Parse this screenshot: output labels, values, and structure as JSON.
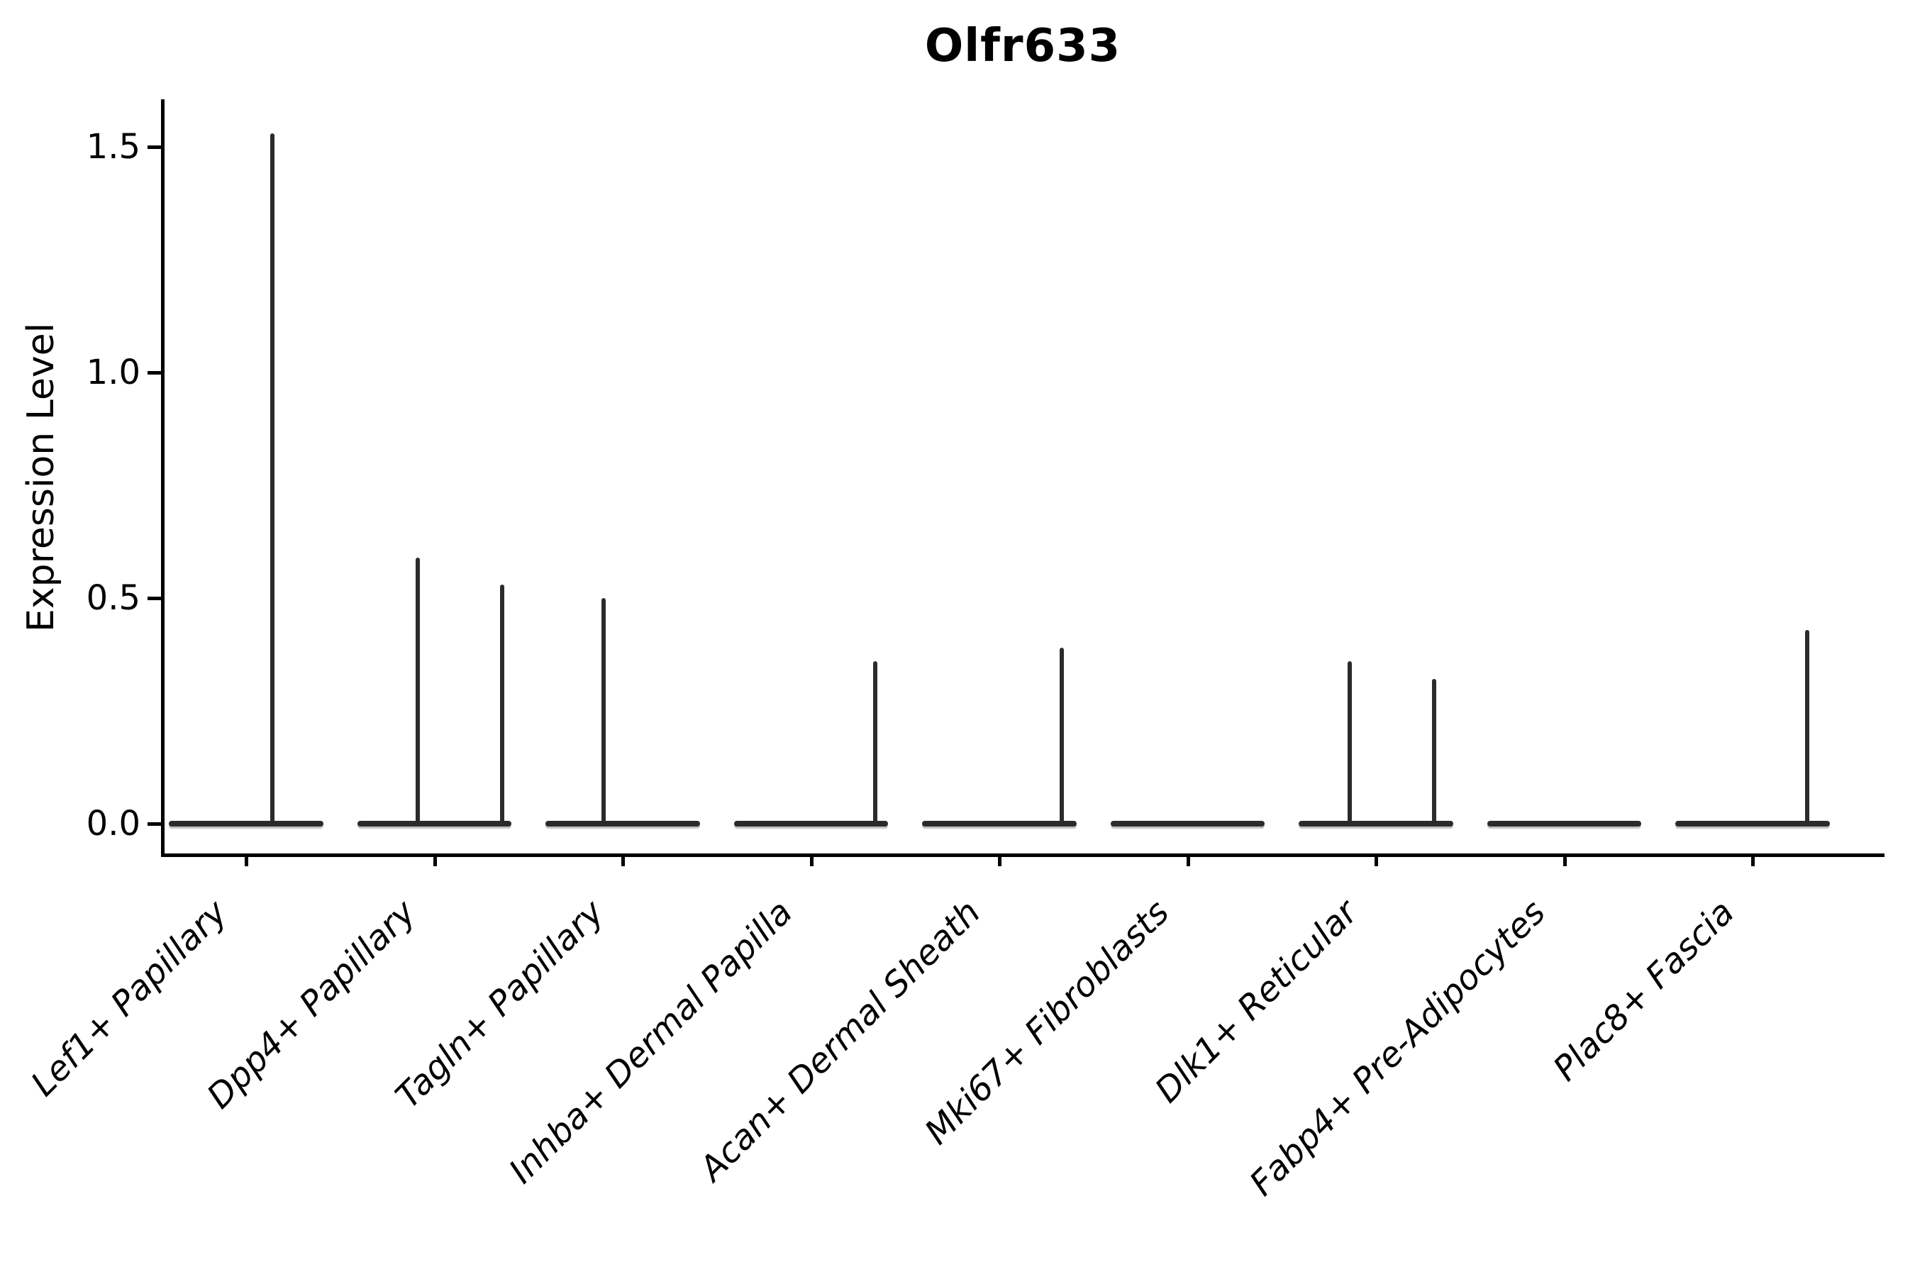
{
  "title": "Olfr633",
  "axes": {
    "ylabel": "Expression Level",
    "line_color": "#2b2b2b",
    "spine_color": "#000000"
  },
  "chart_data": {
    "type": "violin",
    "title": "Olfr633",
    "xlabel": "",
    "ylabel": "Expression Level",
    "ylim": [
      -0.07,
      1.6
    ],
    "yticks": [
      0.0,
      0.5,
      1.0,
      1.5
    ],
    "ytick_labels": [
      "0.0",
      "0.5",
      "1.0",
      "1.5"
    ],
    "grid": false,
    "legend": "none",
    "categories": [
      "Lef1+ Papillary",
      "Dpp4+ Papillary",
      "Tagln+ Papillary",
      "Inhba+ Dermal Papilla",
      "Acan+ Dermal Sheath",
      "Mki67+ Fibroblasts",
      "Dlk1+ Reticular",
      "Fabp4+ Pre-Adipocytes",
      "Plac8+ Fascia"
    ],
    "series": [
      {
        "label": "Lef1+ Papillary",
        "baseline_value": 0.0,
        "max_points": [
          {
            "value": 1.53,
            "x_offset_frac": 0.14
          }
        ]
      },
      {
        "label": "Dpp4+ Papillary",
        "baseline_value": 0.0,
        "max_points": [
          {
            "value": 0.59,
            "x_offset_frac": -0.09
          },
          {
            "value": 0.53,
            "x_offset_frac": 0.36
          }
        ]
      },
      {
        "label": "Tagln+ Papillary",
        "baseline_value": 0.0,
        "max_points": [
          {
            "value": 0.5,
            "x_offset_frac": -0.1
          }
        ]
      },
      {
        "label": "Inhba+ Dermal Papilla",
        "baseline_value": 0.0,
        "max_points": [
          {
            "value": 0.36,
            "x_offset_frac": 0.34
          }
        ]
      },
      {
        "label": "Acan+ Dermal Sheath",
        "baseline_value": 0.0,
        "max_points": [
          {
            "value": 0.39,
            "x_offset_frac": 0.33
          }
        ]
      },
      {
        "label": "Mki67+ Fibroblasts",
        "baseline_value": 0.0,
        "max_points": []
      },
      {
        "label": "Dlk1+ Reticular",
        "baseline_value": 0.0,
        "max_points": [
          {
            "value": 0.36,
            "x_offset_frac": -0.14
          },
          {
            "value": 0.32,
            "x_offset_frac": 0.31
          }
        ]
      },
      {
        "label": "Fabp4+ Pre-Adipocytes",
        "baseline_value": 0.0,
        "max_points": []
      },
      {
        "label": "Plac8+ Fascia",
        "baseline_value": 0.0,
        "max_points": [
          {
            "value": 0.43,
            "x_offset_frac": 0.29
          }
        ]
      }
    ],
    "violin_halfwidth_frac": 0.41
  }
}
